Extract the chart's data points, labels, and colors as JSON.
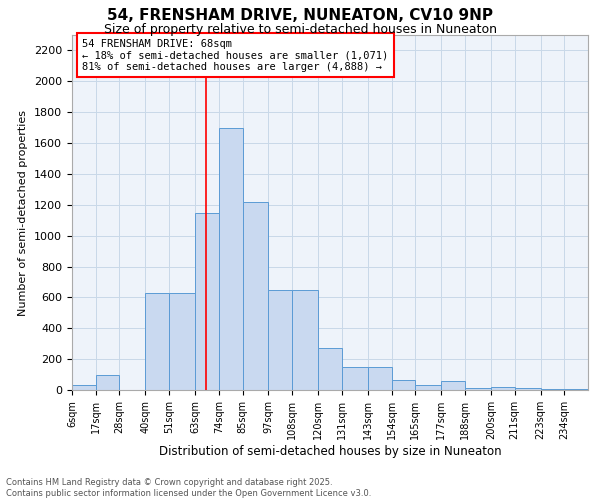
{
  "title_line1": "54, FRENSHAM DRIVE, NUNEATON, CV10 9NP",
  "title_line2": "Size of property relative to semi-detached houses in Nuneaton",
  "xlabel": "Distribution of semi-detached houses by size in Nuneaton",
  "ylabel": "Number of semi-detached properties",
  "bar_color": "#c9d9f0",
  "bar_edge_color": "#5b9bd5",
  "grid_color": "#c8d8e8",
  "bg_color": "#eef3fa",
  "annotation_text": "54 FRENSHAM DRIVE: 68sqm\n← 18% of semi-detached houses are smaller (1,071)\n81% of semi-detached houses are larger (4,888) →",
  "vline_x": 68,
  "vline_color": "red",
  "bins": [
    6,
    17,
    28,
    40,
    51,
    63,
    74,
    85,
    97,
    108,
    120,
    131,
    143,
    154,
    165,
    177,
    188,
    200,
    211,
    223,
    234
  ],
  "bin_labels": [
    "6sqm",
    "17sqm",
    "28sqm",
    "40sqm",
    "51sqm",
    "63sqm",
    "74sqm",
    "85sqm",
    "97sqm",
    "108sqm",
    "120sqm",
    "131sqm",
    "143sqm",
    "154sqm",
    "165sqm",
    "177sqm",
    "188sqm",
    "200sqm",
    "211sqm",
    "223sqm",
    "234sqm"
  ],
  "heights": [
    30,
    100,
    0,
    630,
    630,
    1150,
    1700,
    1220,
    650,
    650,
    270,
    150,
    150,
    65,
    30,
    60,
    10,
    20,
    10,
    5,
    5
  ],
  "ylim": [
    0,
    2300
  ],
  "yticks": [
    0,
    200,
    400,
    600,
    800,
    1000,
    1200,
    1400,
    1600,
    1800,
    2000,
    2200
  ],
  "footer_text": "Contains HM Land Registry data © Crown copyright and database right 2025.\nContains public sector information licensed under the Open Government Licence v3.0.",
  "title_fontsize": 11,
  "subtitle_fontsize": 9,
  "annotation_box_color": "red",
  "annotation_bg": "white",
  "annotation_fontsize": 7.5,
  "footer_fontsize": 6,
  "ylabel_fontsize": 8,
  "xlabel_fontsize": 8.5,
  "ytick_fontsize": 8,
  "xtick_fontsize": 7
}
